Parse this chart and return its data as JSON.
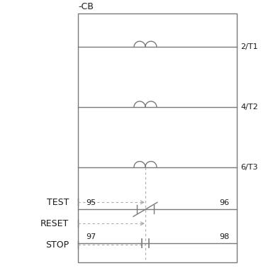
{
  "bg_color": "#ffffff",
  "line_color": "#7a7a7a",
  "dashed_color": "#aaaaaa",
  "text_color": "#1a1a1a",
  "fig_width": 3.85,
  "fig_height": 3.85,
  "cb_label": "-CB",
  "terminal_labels_right": [
    "2/T1",
    "4/T2",
    "6/T3"
  ],
  "side_labels": [
    "TEST",
    "RESET",
    "STOP"
  ],
  "num_labels": [
    "95",
    "96",
    "97",
    "98"
  ]
}
